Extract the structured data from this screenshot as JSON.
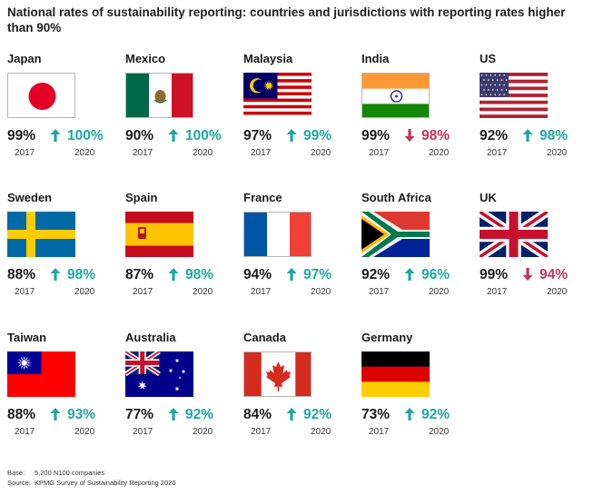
{
  "title": "National rates of sustainability reporting: countries and jurisdictions with reporting rates higher than 90%",
  "colors": {
    "increase": "#1ea8a0",
    "decrease": "#c4325c"
  },
  "chart_data": {
    "type": "table",
    "title": "National rates of sustainability reporting: countries and jurisdictions with reporting rates higher than 90%",
    "years": [
      "2017",
      "2020"
    ],
    "rows": [
      {
        "country": "Japan",
        "flag": "japan-flag-icon",
        "v2017": "99%",
        "v2020": "100%",
        "trend": "up"
      },
      {
        "country": "Mexico",
        "flag": "mexico-flag-icon",
        "v2017": "90%",
        "v2020": "100%",
        "trend": "up"
      },
      {
        "country": "Malaysia",
        "flag": "malaysia-flag-icon",
        "v2017": "97%",
        "v2020": "99%",
        "trend": "up"
      },
      {
        "country": "India",
        "flag": "india-flag-icon",
        "v2017": "99%",
        "v2020": "98%",
        "trend": "down"
      },
      {
        "country": "US",
        "flag": "us-flag-icon",
        "v2017": "92%",
        "v2020": "98%",
        "trend": "up"
      },
      {
        "country": "Sweden",
        "flag": "sweden-flag-icon",
        "v2017": "88%",
        "v2020": "98%",
        "trend": "up"
      },
      {
        "country": "Spain",
        "flag": "spain-flag-icon",
        "v2017": "87%",
        "v2020": "98%",
        "trend": "up"
      },
      {
        "country": "France",
        "flag": "france-flag-icon",
        "v2017": "94%",
        "v2020": "97%",
        "trend": "up"
      },
      {
        "country": "South Africa",
        "flag": "south-africa-flag-icon",
        "v2017": "92%",
        "v2020": "96%",
        "trend": "up"
      },
      {
        "country": "UK",
        "flag": "uk-flag-icon",
        "v2017": "99%",
        "v2020": "94%",
        "trend": "down"
      },
      {
        "country": "Taiwan",
        "flag": "taiwan-flag-icon",
        "v2017": "88%",
        "v2020": "93%",
        "trend": "up"
      },
      {
        "country": "Australia",
        "flag": "australia-flag-icon",
        "v2017": "77%",
        "v2020": "92%",
        "trend": "up"
      },
      {
        "country": "Canada",
        "flag": "canada-flag-icon",
        "v2017": "84%",
        "v2020": "92%",
        "trend": "up"
      },
      {
        "country": "Germany",
        "flag": "germany-flag-icon",
        "v2017": "73%",
        "v2020": "92%",
        "trend": "up"
      }
    ]
  },
  "footer": {
    "base_label": "Base:",
    "base_value": "5,200 N100 companies",
    "source_label": "Source:",
    "source_value": "KPMG Survey of Sustainability Reporting 2020"
  }
}
